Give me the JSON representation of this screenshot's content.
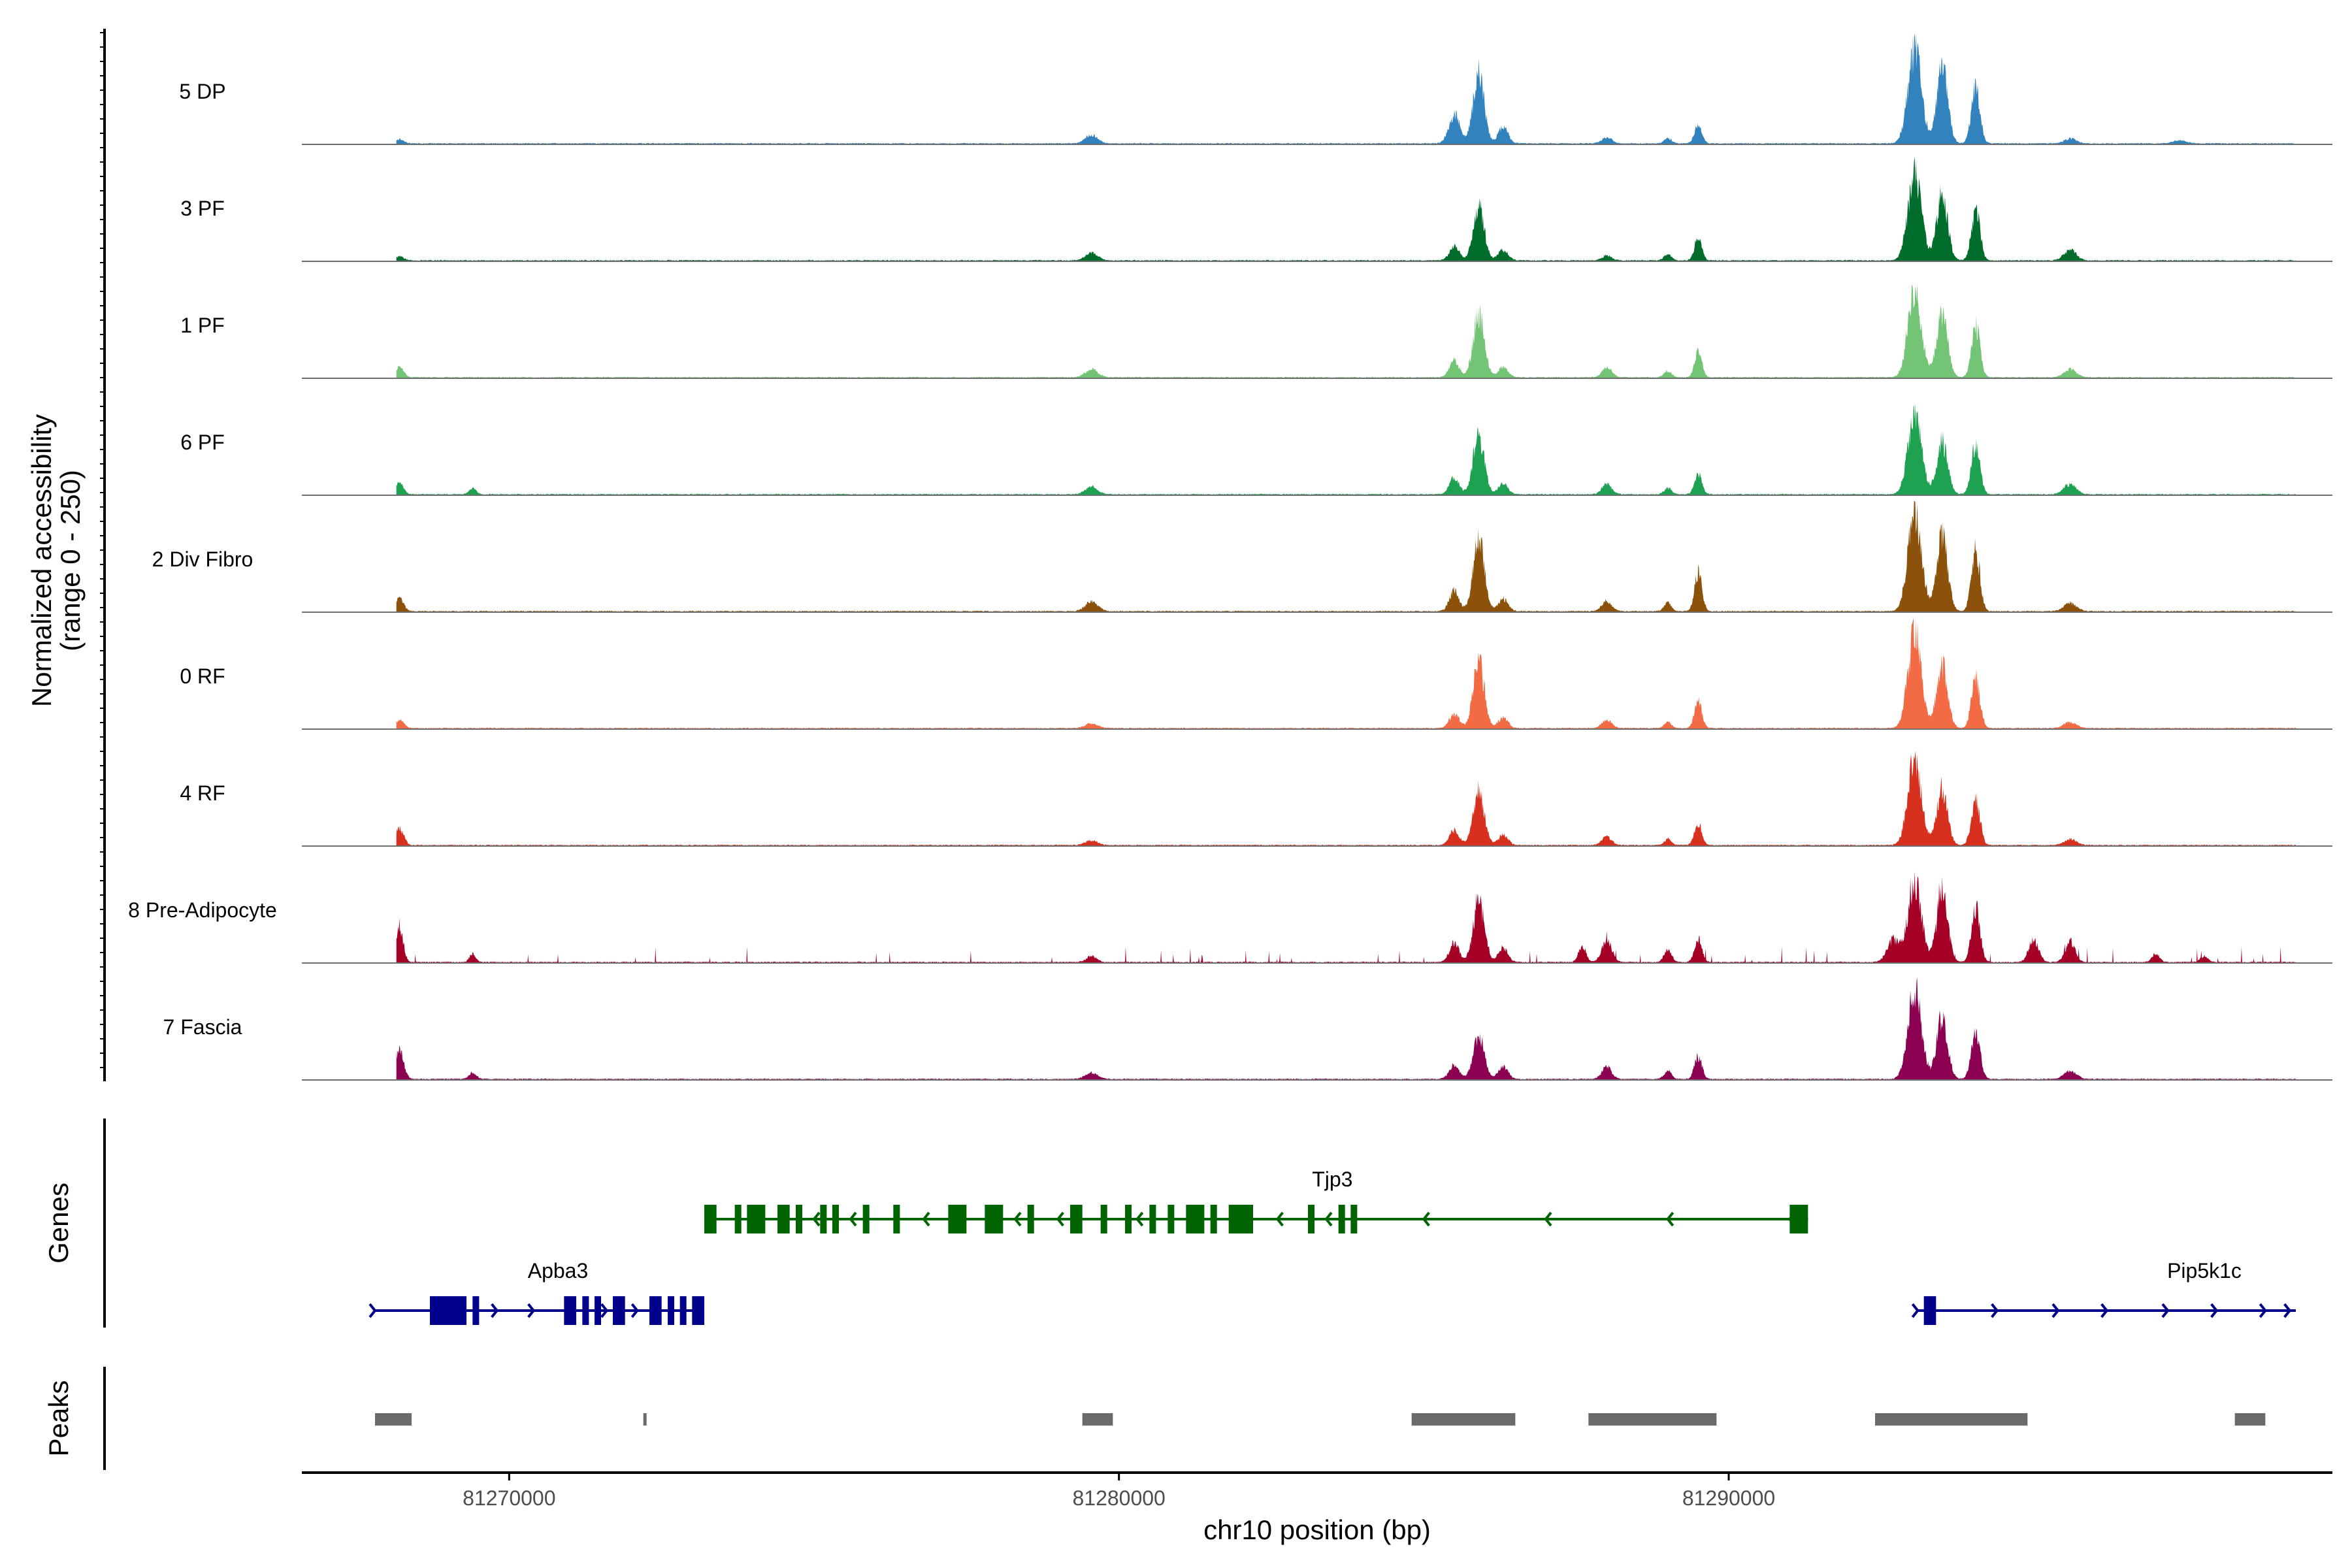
{
  "chart_data": {
    "type": "area",
    "chromosome": "chr10",
    "xlabel": "chr10 position (bp)",
    "xlim": [
      81266600,
      81299900
    ],
    "xticks": [
      81270000,
      81280000,
      81290000
    ],
    "xtick_labels": [
      "81270000",
      "81280000",
      "81290000"
    ],
    "ylabel_line1": "Normalized accessibility",
    "ylabel_line2": "(range 0 - 250)",
    "ylim": [
      0,
      250
    ],
    "tracks": [
      {
        "name": "5 DP",
        "color": "#3182BD",
        "extra_noise": 0,
        "peaks": [
          [
            81268200,
            10,
            70
          ],
          [
            81279550,
            20,
            100
          ],
          [
            81285500,
            70,
            90
          ],
          [
            81285900,
            165,
            90
          ],
          [
            81286300,
            40,
            80
          ],
          [
            81288000,
            15,
            80
          ],
          [
            81289000,
            12,
            60
          ],
          [
            81289500,
            45,
            60
          ],
          [
            81293050,
            225,
            110
          ],
          [
            81293500,
            180,
            90
          ],
          [
            81294050,
            135,
            70
          ],
          [
            81295600,
            12,
            100
          ],
          [
            81297400,
            8,
            100
          ]
        ]
      },
      {
        "name": "3 PF",
        "color": "#006D2C",
        "extra_noise": 0,
        "peaks": [
          [
            81268200,
            10,
            70
          ],
          [
            81279550,
            18,
            100
          ],
          [
            81285500,
            35,
            80
          ],
          [
            81285900,
            125,
            90
          ],
          [
            81286300,
            25,
            80
          ],
          [
            81288000,
            12,
            80
          ],
          [
            81289000,
            15,
            60
          ],
          [
            81289500,
            55,
            60
          ],
          [
            81293050,
            205,
            110
          ],
          [
            81293500,
            160,
            90
          ],
          [
            81294050,
            125,
            70
          ],
          [
            81295600,
            25,
            100
          ]
        ]
      },
      {
        "name": "1 PF",
        "color": "#74C476",
        "extra_noise": 0,
        "peaks": [
          [
            81268200,
            25,
            70
          ],
          [
            81279550,
            20,
            100
          ],
          [
            81285500,
            40,
            80
          ],
          [
            81285900,
            155,
            90
          ],
          [
            81286300,
            25,
            80
          ],
          [
            81288000,
            25,
            80
          ],
          [
            81289000,
            15,
            60
          ],
          [
            81289500,
            60,
            60
          ],
          [
            81293050,
            200,
            110
          ],
          [
            81293500,
            150,
            90
          ],
          [
            81294050,
            125,
            70
          ],
          [
            81295600,
            20,
            100
          ]
        ]
      },
      {
        "name": "6 PF",
        "color": "#1FA152",
        "extra_noise": 0,
        "peaks": [
          [
            81268200,
            25,
            70
          ],
          [
            81269400,
            15,
            60
          ],
          [
            81279550,
            18,
            100
          ],
          [
            81285500,
            40,
            80
          ],
          [
            81285900,
            145,
            90
          ],
          [
            81286300,
            25,
            80
          ],
          [
            81288000,
            25,
            80
          ],
          [
            81289000,
            15,
            60
          ],
          [
            81289500,
            50,
            60
          ],
          [
            81293050,
            195,
            110
          ],
          [
            81293500,
            130,
            90
          ],
          [
            81294050,
            125,
            70
          ],
          [
            81295600,
            25,
            100
          ]
        ]
      },
      {
        "name": "2 Div Fibro",
        "color": "#8C510A",
        "extra_noise": 0,
        "peaks": [
          [
            81268200,
            30,
            70
          ],
          [
            81279550,
            25,
            100
          ],
          [
            81285500,
            50,
            80
          ],
          [
            81285900,
            180,
            90
          ],
          [
            81286300,
            30,
            80
          ],
          [
            81288000,
            25,
            80
          ],
          [
            81289000,
            20,
            60
          ],
          [
            81289500,
            95,
            60
          ],
          [
            81293050,
            240,
            110
          ],
          [
            81293500,
            185,
            90
          ],
          [
            81294050,
            145,
            70
          ],
          [
            81295600,
            20,
            100
          ]
        ]
      },
      {
        "name": "0 RF",
        "color": "#F26B45",
        "extra_noise": 0,
        "peaks": [
          [
            81268200,
            20,
            70
          ],
          [
            81279550,
            12,
            100
          ],
          [
            81285500,
            35,
            80
          ],
          [
            81285900,
            160,
            90
          ],
          [
            81286300,
            25,
            80
          ],
          [
            81288000,
            20,
            80
          ],
          [
            81289000,
            15,
            60
          ],
          [
            81289500,
            65,
            60
          ],
          [
            81293050,
            230,
            110
          ],
          [
            81293500,
            150,
            90
          ],
          [
            81294050,
            120,
            70
          ],
          [
            81295600,
            15,
            100
          ]
        ]
      },
      {
        "name": "4 RF",
        "color": "#D7301F",
        "extra_noise": 0,
        "peaks": [
          [
            81268200,
            40,
            70
          ],
          [
            81279550,
            12,
            100
          ],
          [
            81285500,
            35,
            80
          ],
          [
            81285900,
            135,
            90
          ],
          [
            81286300,
            25,
            80
          ],
          [
            81288000,
            20,
            80
          ],
          [
            81289000,
            15,
            60
          ],
          [
            81289500,
            55,
            60
          ],
          [
            81293050,
            210,
            110
          ],
          [
            81293500,
            135,
            90
          ],
          [
            81294050,
            110,
            70
          ],
          [
            81295600,
            15,
            100
          ]
        ]
      },
      {
        "name": "8 Pre-Adipocyte",
        "color": "#A50026",
        "extra_noise": 1,
        "peaks": [
          [
            81268200,
            85,
            60
          ],
          [
            81269400,
            20,
            50
          ],
          [
            81279550,
            15,
            80
          ],
          [
            81285500,
            45,
            80
          ],
          [
            81285900,
            150,
            90
          ],
          [
            81286300,
            35,
            80
          ],
          [
            81287600,
            40,
            60
          ],
          [
            81288000,
            55,
            80
          ],
          [
            81289000,
            30,
            60
          ],
          [
            81289500,
            55,
            60
          ],
          [
            81292700,
            55,
            100
          ],
          [
            81293050,
            195,
            110
          ],
          [
            81293500,
            170,
            90
          ],
          [
            81294050,
            130,
            70
          ],
          [
            81295000,
            55,
            80
          ],
          [
            81295600,
            50,
            80
          ],
          [
            81297000,
            20,
            60
          ],
          [
            81297800,
            15,
            60
          ]
        ]
      },
      {
        "name": "7 Fascia",
        "color": "#8C0051",
        "extra_noise": 0,
        "peaks": [
          [
            81268200,
            70,
            70
          ],
          [
            81269400,
            15,
            60
          ],
          [
            81279550,
            15,
            100
          ],
          [
            81285500,
            35,
            80
          ],
          [
            81285900,
            105,
            90
          ],
          [
            81286300,
            30,
            80
          ],
          [
            81288000,
            30,
            80
          ],
          [
            81289000,
            20,
            60
          ],
          [
            81289500,
            55,
            60
          ],
          [
            81293050,
            215,
            110
          ],
          [
            81293500,
            150,
            90
          ],
          [
            81294050,
            120,
            70
          ],
          [
            81295600,
            20,
            100
          ]
        ]
      }
    ],
    "genes_panel_title": "Genes",
    "genes": [
      {
        "name": "Tjp3",
        "strand": "-",
        "color": "#006400",
        "start": 81273200,
        "end": 81291300,
        "label_pos": 81283500,
        "exons": [
          [
            81273200,
            81273400
          ],
          [
            81273700,
            81273800
          ],
          [
            81273900,
            81274200
          ],
          [
            81274400,
            81274600
          ],
          [
            81274700,
            81274800
          ],
          [
            81275100,
            81275200
          ],
          [
            81275300,
            81275400
          ],
          [
            81275800,
            81275900
          ],
          [
            81276300,
            81276400
          ],
          [
            81277200,
            81277500
          ],
          [
            81277800,
            81278100
          ],
          [
            81278500,
            81278600
          ],
          [
            81279200,
            81279400
          ],
          [
            81279700,
            81279800
          ],
          [
            81280100,
            81280200
          ],
          [
            81280500,
            81280600
          ],
          [
            81280800,
            81280900
          ],
          [
            81281100,
            81281400
          ],
          [
            81281500,
            81281600
          ],
          [
            81281800,
            81282200
          ],
          [
            81283100,
            81283200
          ],
          [
            81283600,
            81283700
          ],
          [
            81283800,
            81283900
          ],
          [
            81291000,
            81291300
          ]
        ],
        "arrows": [
          81274000,
          81275000,
          81275600,
          81276800,
          81278300,
          81279000,
          81280300,
          81282600,
          81283400,
          81285000,
          81287000,
          81289000,
          81291000
        ]
      },
      {
        "name": "Apba3",
        "strand": "+",
        "color": "#00008B",
        "start": 81267800,
        "end": 81273200,
        "label_pos": 81270800,
        "exons": [
          [
            81268700,
            81269300
          ],
          [
            81269400,
            81269500
          ],
          [
            81270900,
            81271100
          ],
          [
            81271200,
            81271300
          ],
          [
            81271400,
            81271500
          ],
          [
            81271700,
            81271900
          ],
          [
            81272300,
            81272500
          ],
          [
            81272600,
            81272700
          ],
          [
            81272800,
            81272900
          ],
          [
            81273000,
            81273200
          ]
        ],
        "arrows": [
          81267800,
          81269800,
          81270400,
          81271600,
          81272100
        ]
      },
      {
        "name": "Pip5k1c",
        "strand": "+",
        "color": "#00008B",
        "start": 81293100,
        "end": 81299300,
        "label_pos": 81297800,
        "exons": [
          [
            81293200,
            81293400
          ]
        ],
        "arrows": [
          81293100,
          81294400,
          81295400,
          81296200,
          81297200,
          81298000,
          81298800,
          81299200
        ]
      }
    ],
    "peaks_panel_title": "Peaks",
    "peak_regions": [
      [
        81267800,
        81268400
      ],
      [
        81272200,
        81272250
      ],
      [
        81279400,
        81279900
      ],
      [
        81284800,
        81286500
      ],
      [
        81287700,
        81289800
      ],
      [
        81292400,
        81294900
      ],
      [
        81298300,
        81298800
      ]
    ]
  }
}
